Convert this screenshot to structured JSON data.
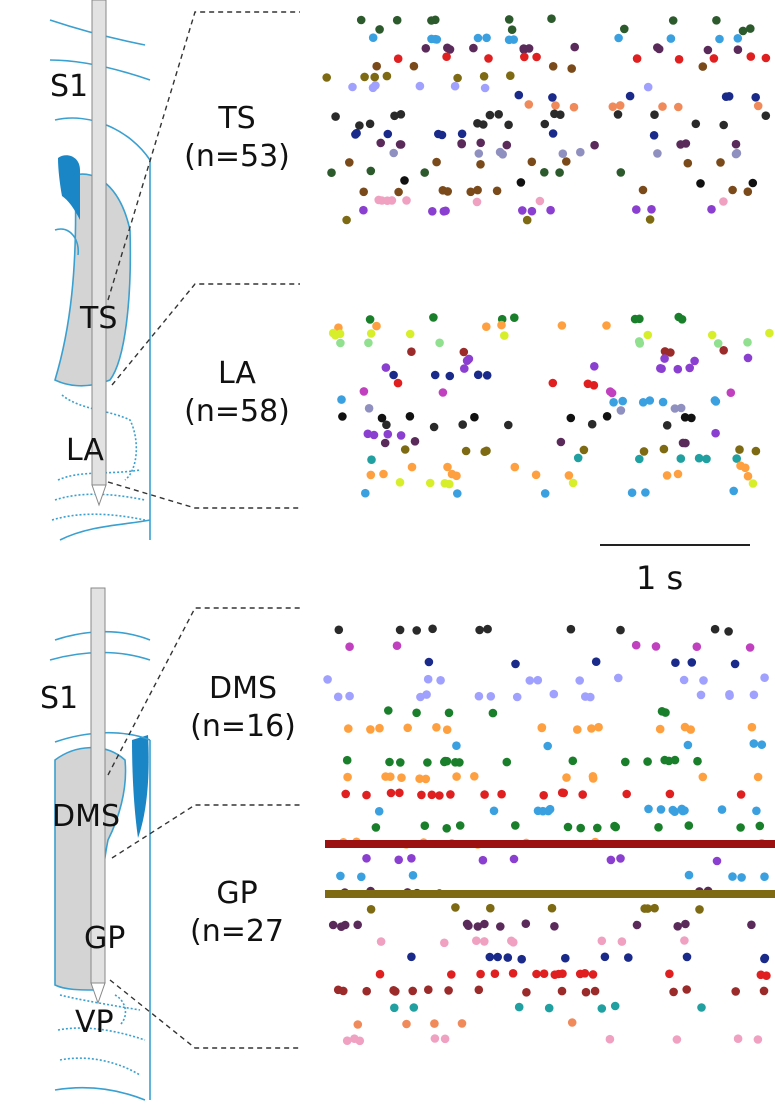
{
  "top_panel": {
    "brain_labels": [
      "S1",
      "TS",
      "LA"
    ],
    "groups": [
      {
        "name": "TS",
        "n": "(n=53)"
      },
      {
        "name": "LA",
        "n": "(n=58)"
      }
    ]
  },
  "scale_bar": {
    "label": "1 s"
  },
  "bottom_panel": {
    "brain_labels": [
      "S1",
      "DMS",
      "GP",
      "VP"
    ],
    "groups": [
      {
        "name": "DMS",
        "n": "(n=16)"
      },
      {
        "name": "GP",
        "n": "(n=27"
      }
    ]
  },
  "colors": {
    "outline": "#3aa0d0",
    "striatum_fill": "#d4d4d4",
    "ventricle": "#1b86c5",
    "probe": "#bdbdbd",
    "dashed_line": "#333333"
  }
}
